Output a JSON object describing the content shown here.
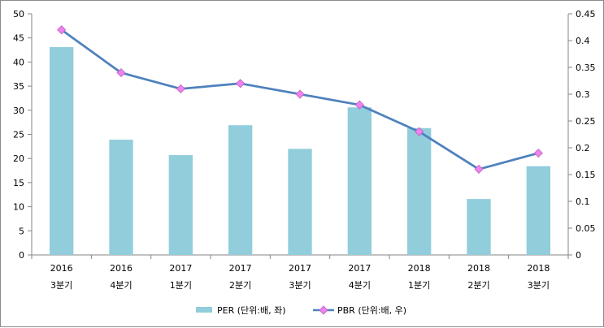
{
  "chart_data": {
    "type": "bar",
    "categories": [
      [
        "2016",
        "3분기"
      ],
      [
        "2016",
        "4분기"
      ],
      [
        "2017",
        "1분기"
      ],
      [
        "2017",
        "2분기"
      ],
      [
        "2017",
        "3분기"
      ],
      [
        "2017",
        "4분기"
      ],
      [
        "2018",
        "1분기"
      ],
      [
        "2018",
        "2분기"
      ],
      [
        "2018",
        "3분기"
      ]
    ],
    "series": [
      {
        "name": "PER (단위:배, 좌)",
        "type": "bar",
        "axis": "left",
        "color": "#92cddc",
        "values": [
          43.1,
          23.9,
          20.7,
          26.9,
          22.0,
          30.6,
          26.3,
          11.6,
          18.4
        ]
      },
      {
        "name": "PBR (단위:배, 우)",
        "type": "line",
        "axis": "right",
        "color": "#4f81bd",
        "marker_color": "#ee82ee",
        "values": [
          0.42,
          0.34,
          0.31,
          0.32,
          0.3,
          0.28,
          0.23,
          0.16,
          0.19
        ]
      }
    ],
    "left_axis": {
      "min": 0,
      "max": 50,
      "step": 5,
      "ticks": [
        "0",
        "5",
        "10",
        "15",
        "20",
        "25",
        "30",
        "35",
        "40",
        "45",
        "50"
      ]
    },
    "right_axis": {
      "min": 0,
      "max": 0.45,
      "step": 0.05,
      "ticks": [
        "0",
        "0.05",
        "0.1",
        "0.15",
        "0.2",
        "0.25",
        "0.3",
        "0.35",
        "0.4",
        "0.45"
      ]
    },
    "grid": false,
    "legend": "bottom"
  }
}
